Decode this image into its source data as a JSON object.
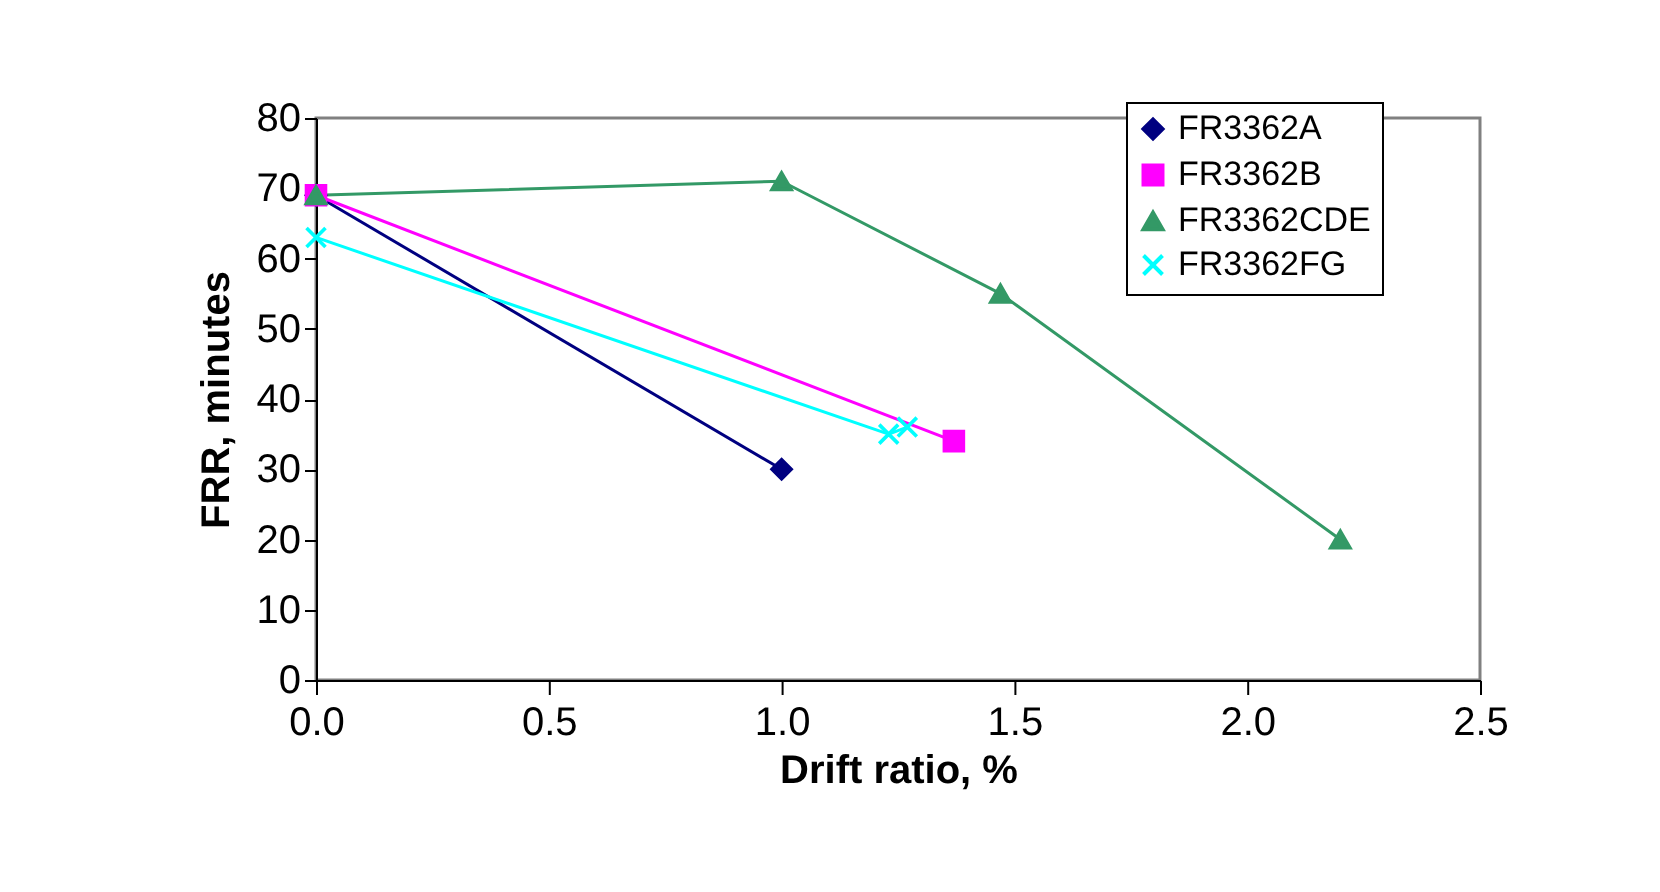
{
  "chart_data": {
    "type": "line",
    "xlabel": "Drift ratio, %",
    "ylabel": "FRR, minutes",
    "xlim": [
      0,
      2.5
    ],
    "xticks": [
      {
        "value": 0,
        "label": "0.0"
      },
      {
        "value": 0.5,
        "label": "0.5"
      },
      {
        "value": 1,
        "label": "1.0"
      },
      {
        "value": 1.5,
        "label": "1.5"
      },
      {
        "value": 2,
        "label": "2.0"
      },
      {
        "value": 2.5,
        "label": "2.5"
      }
    ],
    "ylim": [
      0,
      80
    ],
    "yticks": [
      0,
      10,
      20,
      30,
      40,
      50,
      60,
      70,
      80
    ],
    "grid": false,
    "legend": "top right",
    "line_style": "solid",
    "series": [
      {
        "name": "FR3362A",
        "color": "#000080",
        "marker": "diamond",
        "x": [
          0,
          1
        ],
        "values": [
          69,
          30
        ]
      },
      {
        "name": "FR3362B",
        "color": "#ff00ff",
        "marker": "square",
        "x": [
          0,
          1.37
        ],
        "values": [
          69,
          34
        ]
      },
      {
        "name": "FR3362CDE",
        "color": "#339966",
        "marker": "triangle",
        "x": [
          0,
          1,
          1.47,
          2.2
        ],
        "values": [
          69,
          71,
          55,
          20
        ]
      },
      {
        "name": "FR3362FG",
        "color": "#00ffff",
        "marker": "cross",
        "x": [
          0,
          1.23,
          1.27
        ],
        "values": [
          63,
          35,
          36
        ]
      }
    ]
  }
}
